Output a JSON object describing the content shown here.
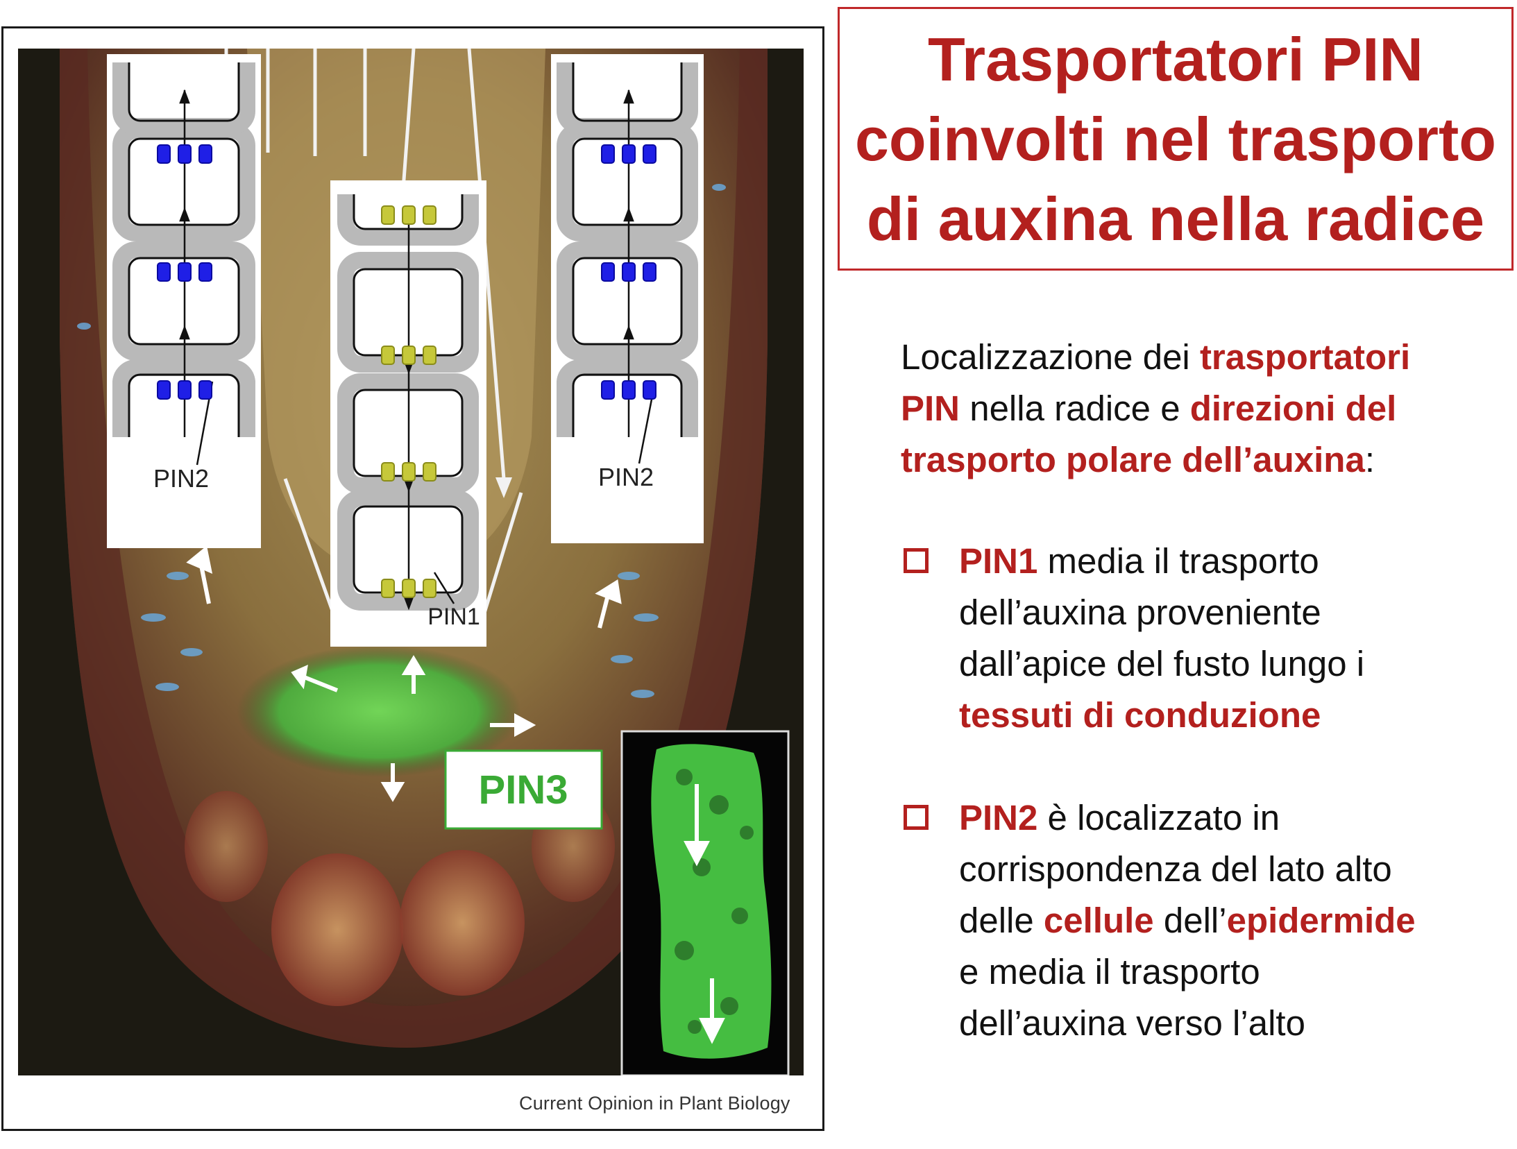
{
  "title": {
    "line1": "Trasportatori PIN",
    "line2": "coinvolti nel trasporto",
    "line3": "di auxina nella radice"
  },
  "intro": {
    "part1": "Localizzazione dei ",
    "red1": "trasportatori",
    "red2": "PIN",
    "part2": " nella radice e ",
    "red3": "direzioni del",
    "red4": "trasporto polare dell’auxina",
    "part3": ":"
  },
  "bullet1": {
    "red1": "PIN1",
    "text1": " media il trasporto",
    "text2": "dell’auxina proveniente",
    "text3": "dall’apice del fusto lungo i",
    "red2": "tessuti di conduzione"
  },
  "bullet2": {
    "red1": "PIN2",
    "text1": " è localizzato in",
    "text2": "corrispondenza del lato alto",
    "text3a": "delle ",
    "red2": "cellule",
    "text3b": " dell’",
    "red3": "epidermide",
    "text4": "e media il trasporto",
    "text5": "dell’auxina verso l’alto"
  },
  "figure": {
    "label_pin2_left": "PIN2",
    "label_pin1": "PIN1",
    "label_pin2_right": "PIN2",
    "label_pin3": "PIN3",
    "caption": "Current Opinion in Plant Biology"
  },
  "colors": {
    "title_red": "#b3201e",
    "pin2_blue": "#1f1fe6",
    "pin1_yellow": "#c6c83a",
    "pin3_green": "#3aaa35",
    "gfp_green": "#4fd24a"
  }
}
